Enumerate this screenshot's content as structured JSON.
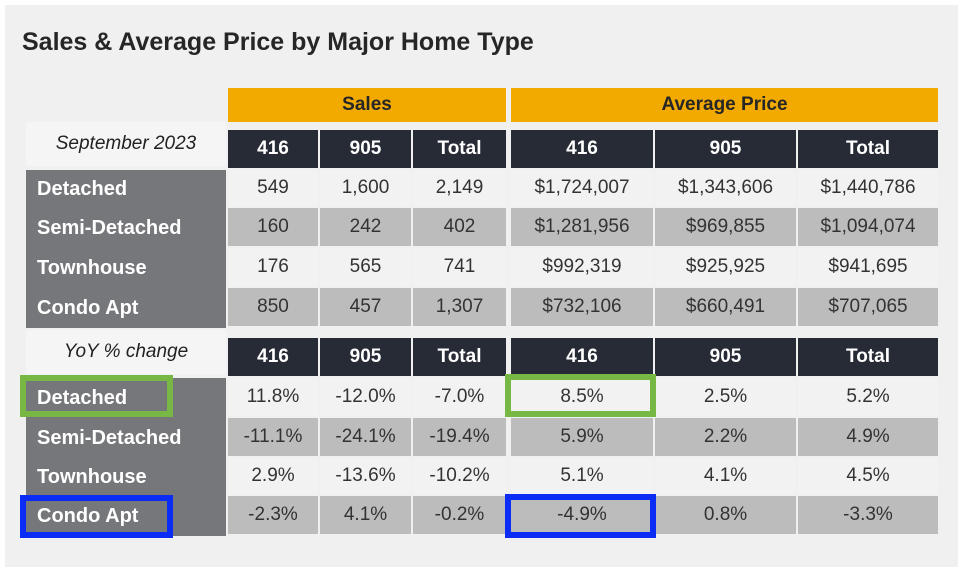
{
  "title": "Sales & Average Price by Major Home Type",
  "groups": {
    "sales": "Sales",
    "avg_price": "Average Price"
  },
  "columns": [
    "416",
    "905",
    "Total",
    "416",
    "905",
    "Total"
  ],
  "table1": {
    "caption": "September 2023",
    "rows": [
      {
        "label": "Detached",
        "values": [
          "549",
          "1,600",
          "2,149",
          "$1,724,007",
          "$1,343,606",
          "$1,440,786"
        ]
      },
      {
        "label": "Semi-Detached",
        "values": [
          "160",
          "242",
          "402",
          "$1,281,956",
          "$969,855",
          "$1,094,074"
        ]
      },
      {
        "label": "Townhouse",
        "values": [
          "176",
          "565",
          "741",
          "$992,319",
          "$925,925",
          "$941,695"
        ]
      },
      {
        "label": "Condo Apt",
        "values": [
          "850",
          "457",
          "1,307",
          "$732,106",
          "$660,491",
          "$707,065"
        ]
      }
    ]
  },
  "table2": {
    "caption": "YoY % change",
    "rows": [
      {
        "label": "Detached",
        "values": [
          "11.8%",
          "-12.0%",
          "-7.0%",
          "8.5%",
          "2.5%",
          "5.2%"
        ]
      },
      {
        "label": "Semi-Detached",
        "values": [
          "-11.1%",
          "-24.1%",
          "-19.4%",
          "5.9%",
          "2.2%",
          "4.9%"
        ]
      },
      {
        "label": "Townhouse",
        "values": [
          "2.9%",
          "-13.6%",
          "-10.2%",
          "5.1%",
          "4.1%",
          "4.5%"
        ]
      },
      {
        "label": "Condo Apt",
        "values": [
          "-2.3%",
          "4.1%",
          "-0.2%",
          "-4.9%",
          "0.8%",
          "-3.3%"
        ]
      }
    ]
  },
  "highlights": [
    {
      "color": "#77b844",
      "row": "Detached",
      "cells": [
        "label",
        "416 Average Price"
      ]
    },
    {
      "color": "#0a2cf5",
      "row": "Condo Apt",
      "cells": [
        "label",
        "416 Average Price"
      ]
    }
  ]
}
